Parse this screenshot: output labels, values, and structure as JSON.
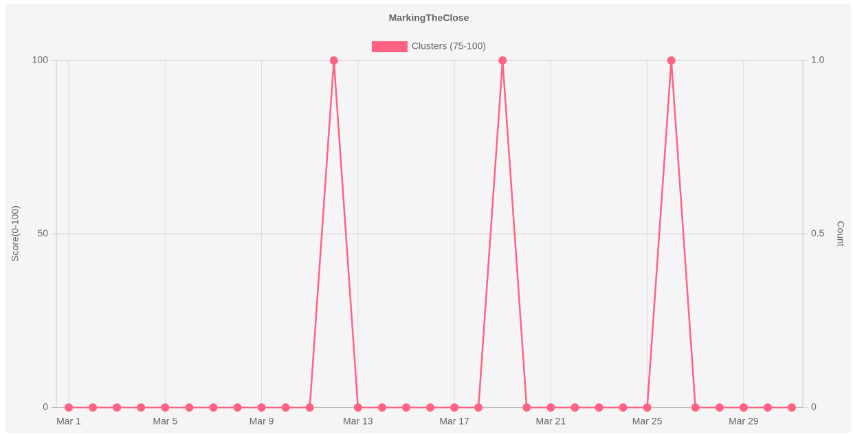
{
  "chart_data": {
    "type": "line",
    "title": "MarkingTheClose",
    "categories": [
      "Mar 1",
      null,
      null,
      null,
      "Mar 5",
      null,
      null,
      null,
      "Mar 9",
      null,
      null,
      null,
      "Mar 13",
      null,
      null,
      null,
      "Mar 17",
      null,
      null,
      null,
      "Mar 21",
      null,
      null,
      null,
      "Mar 25",
      null,
      null,
      null,
      "Mar 29",
      null,
      null
    ],
    "series": [
      {
        "name": "Clusters (75-100)",
        "color": "#ff6384",
        "values": [
          0,
          0,
          0,
          0,
          0,
          0,
          0,
          0,
          0,
          0,
          0,
          100,
          0,
          0,
          0,
          0,
          0,
          0,
          100,
          0,
          0,
          0,
          0,
          0,
          0,
          100,
          0,
          0,
          0,
          0,
          0
        ]
      }
    ],
    "ylabel": "Score(0-100)",
    "y2label": "Count",
    "ylim": [
      0,
      100
    ],
    "yticks": [
      0,
      50,
      100
    ],
    "y2lim": [
      0,
      1
    ],
    "y2ticks": [
      0,
      0.5,
      {
        "value": 1,
        "label": "1.0"
      }
    ],
    "grid": true,
    "legend": "top"
  }
}
